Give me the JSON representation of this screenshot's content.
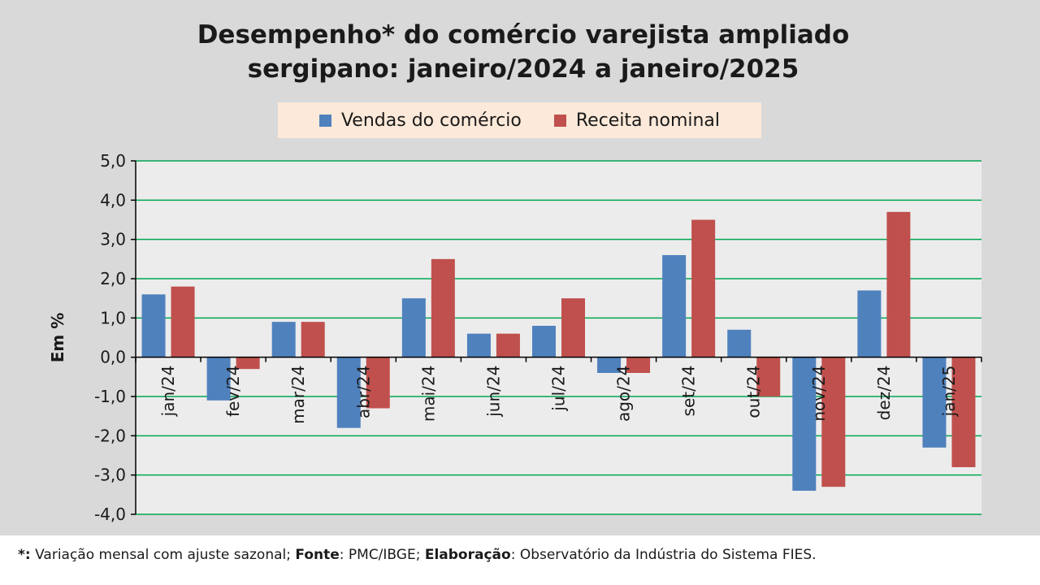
{
  "title_line1": "Desempenho* do comércio varejista ampliado",
  "title_line2": "sergipano: janeiro/2024 a janeiro/2025",
  "colors": {
    "series1": "#4f81bd",
    "series2": "#c0504d",
    "grid": "#00a651",
    "plot_bg": "#ececec",
    "legend_bg": "#fde9d9"
  },
  "chart_data": {
    "type": "bar",
    "title": "Desempenho* do comércio varejista ampliado sergipano: janeiro/2024 a janeiro/2025",
    "ylabel": "Em %",
    "xlabel": "",
    "ylim": [
      -4.0,
      5.0
    ],
    "yticks": [
      "5,0",
      "4,0",
      "3,0",
      "2,0",
      "1,0",
      "0,0",
      "-1,0",
      "-2,0",
      "-3,0",
      "-4,0"
    ],
    "ytick_values": [
      5,
      4,
      3,
      2,
      1,
      0,
      -1,
      -2,
      -3,
      -4
    ],
    "categories": [
      "jan/24",
      "fev/24",
      "mar/24",
      "abr/24",
      "mai/24",
      "jun/24",
      "jul/24",
      "ago/24",
      "set/24",
      "out/24",
      "nov/24",
      "dez/24",
      "jan/25"
    ],
    "series": [
      {
        "name": "Vendas do comércio",
        "values": [
          1.6,
          -1.1,
          0.9,
          -1.8,
          1.5,
          0.6,
          0.8,
          -0.4,
          2.6,
          0.7,
          -3.4,
          1.7,
          -2.3
        ]
      },
      {
        "name": "Receita nominal",
        "values": [
          1.8,
          -0.3,
          0.9,
          -1.3,
          2.5,
          0.6,
          1.5,
          -0.4,
          3.5,
          -1.0,
          -3.3,
          3.7,
          -2.8
        ]
      }
    ],
    "grid": true,
    "legend_position": "top"
  },
  "footnote": {
    "star": "*:",
    "text1": " Variação mensal com ajuste sazonal; ",
    "fonte_label": "Fonte",
    "text2": ": PMC/IBGE; ",
    "elab_label": "Elaboração",
    "text3": ": Observatório da Indústria do Sistema FIES."
  }
}
